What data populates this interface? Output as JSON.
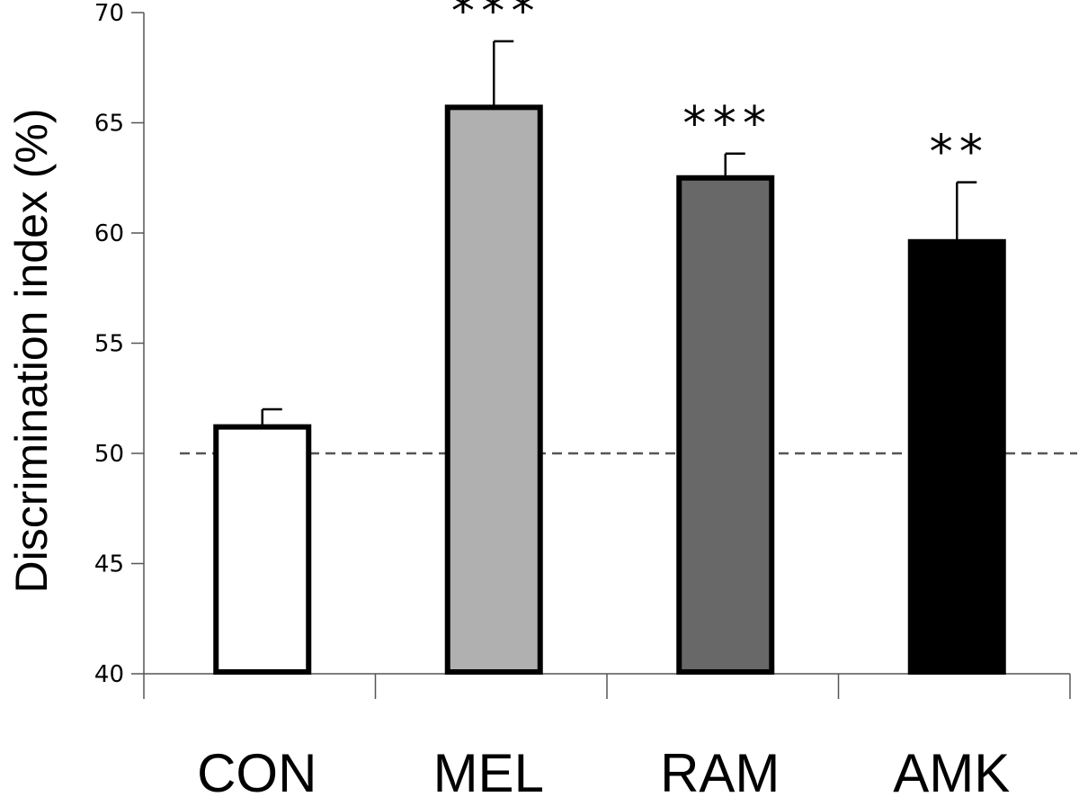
{
  "chart_data": {
    "type": "bar",
    "title": "",
    "xlabel": "",
    "ylabel": "Discrimination index (%)",
    "ylim": [
      40,
      70
    ],
    "yticks": [
      40,
      45,
      50,
      55,
      60,
      65,
      70
    ],
    "categories": [
      "CON",
      "MEL",
      "RAM",
      "AMK"
    ],
    "values": [
      51.2,
      65.7,
      62.5,
      59.6
    ],
    "errors": [
      0.8,
      3.0,
      1.1,
      2.7
    ],
    "significance": [
      "",
      "***",
      "***",
      "**"
    ],
    "bar_colors": [
      "#ffffff",
      "#b0b0b0",
      "#686868",
      "#000000"
    ],
    "bar_edge_color": "#000000",
    "reference_line": {
      "value": 50,
      "style": "dashed",
      "color": "#555555"
    },
    "grid": false,
    "legend": "none"
  }
}
